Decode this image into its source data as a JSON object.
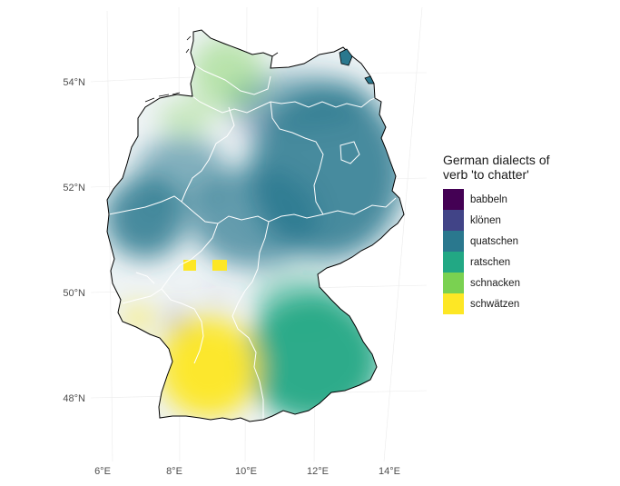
{
  "map": {
    "projection_ticks": {
      "lat": [
        {
          "label": "54°N",
          "value": 54
        },
        {
          "label": "52°N",
          "value": 52
        },
        {
          "label": "50°N",
          "value": 50
        },
        {
          "label": "48°N",
          "value": 48
        }
      ],
      "lon": [
        {
          "label": "6°E",
          "value": 6
        },
        {
          "label": "8°E",
          "value": 8
        },
        {
          "label": "10°E",
          "value": 10
        },
        {
          "label": "12°E",
          "value": 12
        },
        {
          "label": "14°E",
          "value": 14
        }
      ]
    },
    "legend": {
      "title_line1": "German dialects of",
      "title_line2": "verb 'to chatter'",
      "items": [
        {
          "label": "babbeln",
          "color": "#440154"
        },
        {
          "label": "klönen",
          "color": "#414487"
        },
        {
          "label": "quatschen",
          "color": "#2A788E"
        },
        {
          "label": "ratschen",
          "color": "#22A884"
        },
        {
          "label": "schnacken",
          "color": "#7AD151"
        },
        {
          "label": "schwätzen",
          "color": "#FDE725"
        }
      ]
    }
  }
}
